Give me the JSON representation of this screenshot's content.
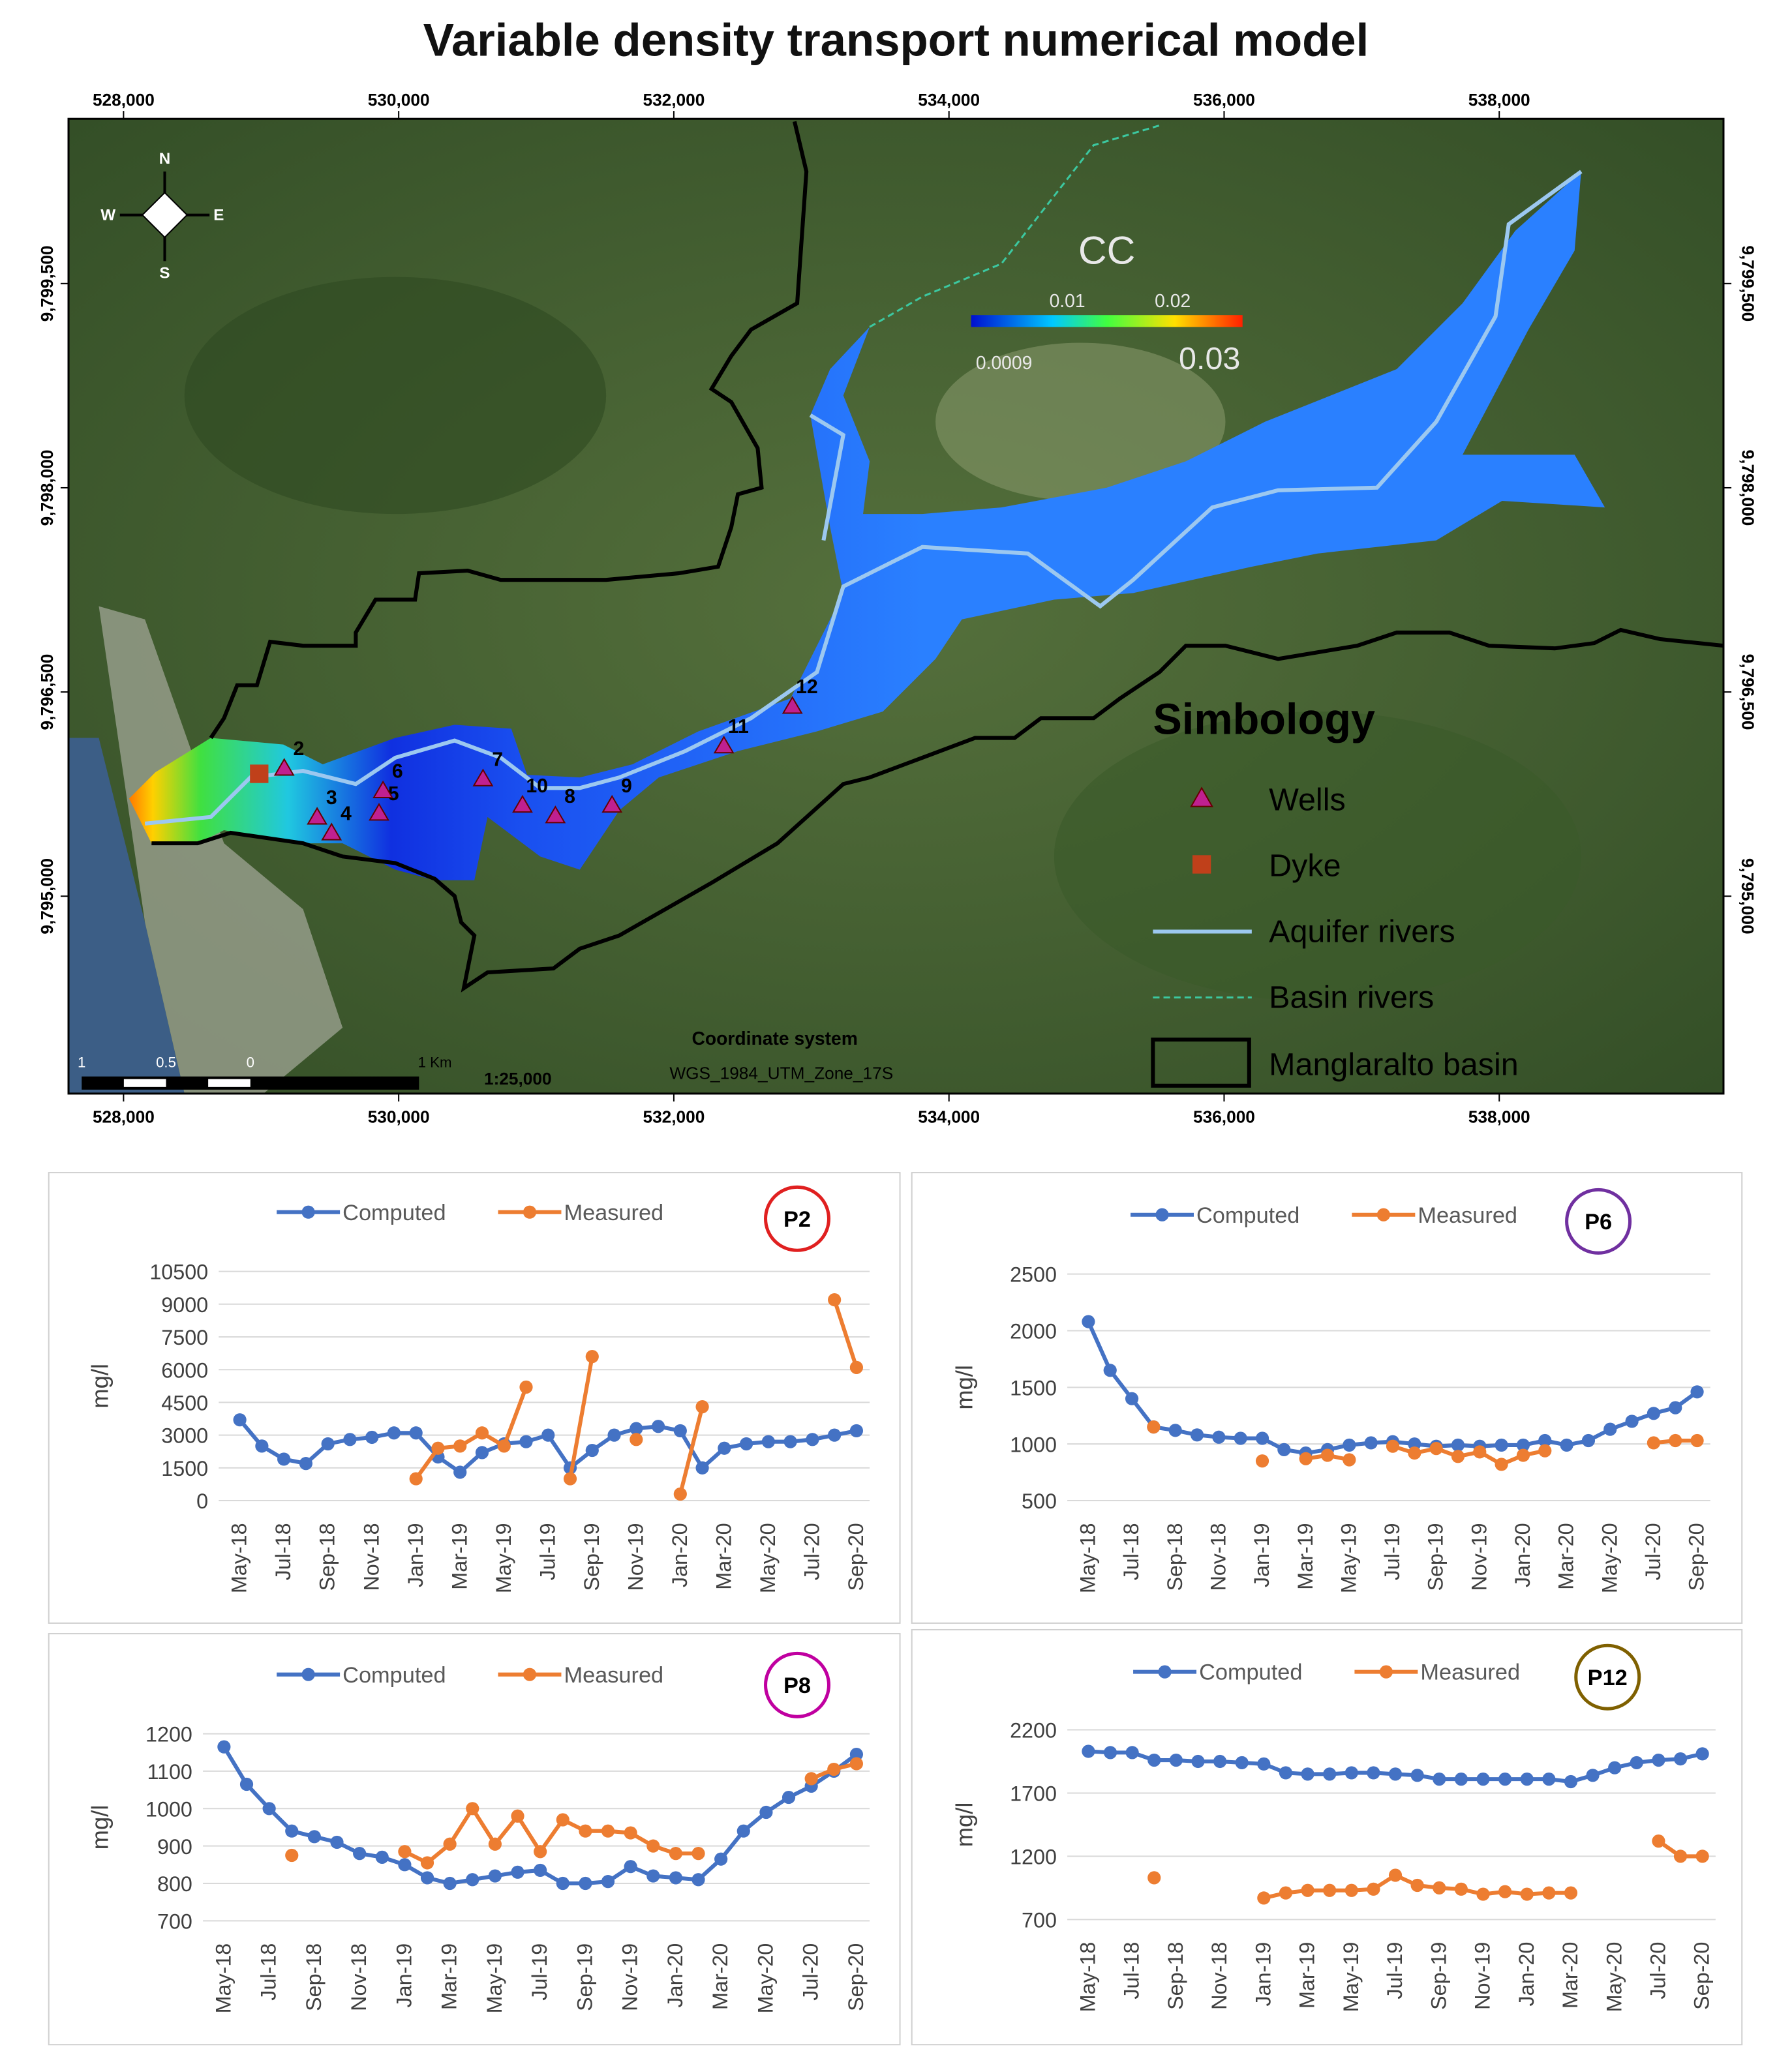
{
  "title": "Variable density transport numerical model",
  "map": {
    "xlim": [
      527600,
      539630
    ],
    "ylim": [
      9793550,
      9800710
    ],
    "xticks": [
      {
        "value": 528000,
        "label": "528,000"
      },
      {
        "value": 530000,
        "label": "530,000"
      },
      {
        "value": 532000,
        "label": "532,000"
      },
      {
        "value": 534000,
        "label": "534,000"
      },
      {
        "value": 536000,
        "label": "536,000"
      },
      {
        "value": 538000,
        "label": "538,000"
      }
    ],
    "yticks": [
      {
        "value": 9795000,
        "label": "9,795,000"
      },
      {
        "value": 9796500,
        "label": "9,796,500"
      },
      {
        "value": 9798000,
        "label": "9,798,000"
      },
      {
        "value": 9799500,
        "label": "9,799,500"
      }
    ],
    "compass": {
      "n": "N",
      "s": "S",
      "e": "E",
      "w": "W"
    },
    "colorbar": {
      "title": "CC",
      "labels": [
        "0.0009",
        "0.01",
        "0.02",
        "0.03"
      ]
    },
    "wells": [
      {
        "label": "2",
        "x": 529168,
        "y": 9795938
      },
      {
        "label": "3",
        "x": 529407,
        "y": 9795579
      },
      {
        "label": "4",
        "x": 529512,
        "y": 9795463
      },
      {
        "label": "5",
        "x": 529857,
        "y": 9795608
      },
      {
        "label": "6",
        "x": 529886,
        "y": 9795773
      },
      {
        "label": "7",
        "x": 530613,
        "y": 9795860
      },
      {
        "label": "10",
        "x": 530900,
        "y": 9795667
      },
      {
        "label": "8",
        "x": 531139,
        "y": 9795589
      },
      {
        "label": "9",
        "x": 531551,
        "y": 9795667
      },
      {
        "label": "11",
        "x": 532364,
        "y": 9796102
      },
      {
        "label": "12",
        "x": 532862,
        "y": 9796393
      }
    ],
    "dyke": {
      "x": 528986,
      "y": 9795899
    },
    "legend": {
      "title": "Simbology",
      "items": [
        "Wells",
        "Dyke",
        "Aquifer rivers",
        "Basin rivers",
        "Manglaralto basin"
      ]
    },
    "coordinate_system": {
      "title": "Coordinate system",
      "name": "WGS_1984_UTM_Zone_17S"
    },
    "scale": "1:25,000",
    "scalebar": [
      "1",
      "0.5",
      "0",
      "1 Km"
    ]
  },
  "chart_data": [
    {
      "type": "line",
      "title": "P2",
      "title_color": "#e02020",
      "y_label": "mg/l",
      "categories": [
        "May-18",
        null,
        "Jul-18",
        null,
        "Sep-18",
        null,
        "Nov-18",
        null,
        "Jan-19",
        null,
        "Mar-19",
        null,
        "May-19",
        null,
        "Jul-19",
        null,
        "Sep-19",
        null,
        "Nov-19",
        null,
        "Jan-20",
        null,
        "Mar-20",
        null,
        "May-20",
        null,
        "Jul-20",
        null,
        "Sep-20"
      ],
      "series": [
        {
          "name": "Computed",
          "color": "#4472c4",
          "values": [
            3700,
            2500,
            1900,
            1700,
            2600,
            2800,
            2900,
            3100,
            3100,
            2000,
            1300,
            2200,
            2600,
            2700,
            3000,
            1500,
            2300,
            3000,
            3300,
            3400,
            3200,
            1500,
            2400,
            2600,
            2700,
            2700,
            2800,
            3000,
            3200
          ]
        },
        {
          "name": "Measured",
          "color": "#ed7d31",
          "values": [
            null,
            null,
            null,
            null,
            null,
            null,
            null,
            null,
            1000,
            2400,
            2500,
            3100,
            2500,
            5200,
            null,
            1000,
            6600,
            null,
            2800,
            null,
            300,
            4300,
            null,
            null,
            null,
            null,
            null,
            9200,
            6100
          ]
        }
      ],
      "ylim": [
        0,
        10500
      ],
      "yticks": [
        0,
        1500,
        3000,
        4500,
        6000,
        7500,
        9000,
        10500
      ],
      "grid": true,
      "legend": "top"
    },
    {
      "type": "line",
      "title": "P6",
      "title_color": "#7030a0",
      "y_label": "mg/l",
      "categories": [
        "May-18",
        null,
        "Jul-18",
        null,
        "Sep-18",
        null,
        "Nov-18",
        null,
        "Jan-19",
        null,
        "Mar-19",
        null,
        "May-19",
        null,
        "Jul-19",
        null,
        "Sep-19",
        null,
        "Nov-19",
        null,
        "Jan-20",
        null,
        "Mar-20",
        null,
        "May-20",
        null,
        "Jul-20",
        null,
        "Sep-20"
      ],
      "series": [
        {
          "name": "Computed",
          "color": "#4472c4",
          "values": [
            2080,
            1650,
            1400,
            1150,
            1120,
            1080,
            1060,
            1050,
            1050,
            950,
            920,
            950,
            990,
            1010,
            1020,
            1000,
            980,
            990,
            980,
            990,
            990,
            1030,
            990,
            1030,
            1130,
            1200,
            1270,
            1320,
            1460
          ]
        },
        {
          "name": "Measured",
          "color": "#ed7d31",
          "values": [
            null,
            null,
            null,
            1150,
            null,
            null,
            null,
            null,
            850,
            null,
            870,
            900,
            860,
            null,
            980,
            920,
            960,
            890,
            930,
            820,
            900,
            940,
            null,
            null,
            null,
            null,
            1010,
            1030,
            1030
          ]
        }
      ],
      "ylim": [
        500,
        2500
      ],
      "yticks": [
        500,
        1000,
        1500,
        2000,
        2500
      ],
      "grid": true,
      "legend": "top"
    },
    {
      "type": "line",
      "title": "P8",
      "title_color": "#c000a0",
      "y_label": "mg/l",
      "categories": [
        "May-18",
        null,
        "Jul-18",
        null,
        "Sep-18",
        null,
        "Nov-18",
        null,
        "Jan-19",
        null,
        "Mar-19",
        null,
        "May-19",
        null,
        "Jul-19",
        null,
        "Sep-19",
        null,
        "Nov-19",
        null,
        "Jan-20",
        null,
        "Mar-20",
        null,
        "May-20",
        null,
        "Jul-20",
        null,
        "Sep-20"
      ],
      "series": [
        {
          "name": "Computed",
          "color": "#4472c4",
          "values": [
            1165,
            1065,
            1000,
            940,
            925,
            910,
            880,
            870,
            850,
            815,
            800,
            810,
            820,
            830,
            835,
            800,
            800,
            805,
            845,
            820,
            815,
            810,
            865,
            940,
            990,
            1030,
            1060,
            1100,
            1145
          ]
        },
        {
          "name": "Measured",
          "color": "#ed7d31",
          "values": [
            null,
            null,
            null,
            875,
            null,
            null,
            null,
            null,
            885,
            855,
            905,
            1000,
            905,
            980,
            885,
            970,
            940,
            940,
            935,
            900,
            880,
            880,
            null,
            null,
            null,
            null,
            1080,
            1105,
            1120
          ]
        }
      ],
      "ylim": [
        700,
        1200
      ],
      "yticks": [
        700,
        800,
        900,
        1000,
        1100,
        1200
      ],
      "grid": true,
      "legend": "top"
    },
    {
      "type": "line",
      "title": "P12",
      "title_color": "#7f6000",
      "y_label": "mg/l",
      "categories": [
        "May-18",
        null,
        "Jul-18",
        null,
        "Sep-18",
        null,
        "Nov-18",
        null,
        "Jan-19",
        null,
        "Mar-19",
        null,
        "May-19",
        null,
        "Jul-19",
        null,
        "Sep-19",
        null,
        "Nov-19",
        null,
        "Jan-20",
        null,
        "Mar-20",
        null,
        "May-20",
        null,
        "Jul-20",
        null,
        "Sep-20"
      ],
      "series": [
        {
          "name": "Computed",
          "color": "#4472c4",
          "values": [
            2030,
            2020,
            2020,
            1960,
            1960,
            1950,
            1950,
            1940,
            1930,
            1860,
            1850,
            1850,
            1860,
            1860,
            1850,
            1840,
            1810,
            1810,
            1810,
            1810,
            1810,
            1810,
            1790,
            1840,
            1900,
            1940,
            1960,
            1970,
            2010
          ]
        },
        {
          "name": "Measured",
          "color": "#ed7d31",
          "values": [
            null,
            null,
            null,
            1030,
            null,
            null,
            null,
            null,
            870,
            910,
            930,
            930,
            930,
            940,
            1050,
            970,
            950,
            940,
            900,
            920,
            900,
            910,
            910,
            null,
            null,
            null,
            1320,
            1200,
            1200
          ]
        }
      ],
      "ylim": [
        700,
        2200
      ],
      "yticks": [
        700,
        1200,
        1700,
        2200
      ],
      "grid": true,
      "legend": "top"
    }
  ]
}
